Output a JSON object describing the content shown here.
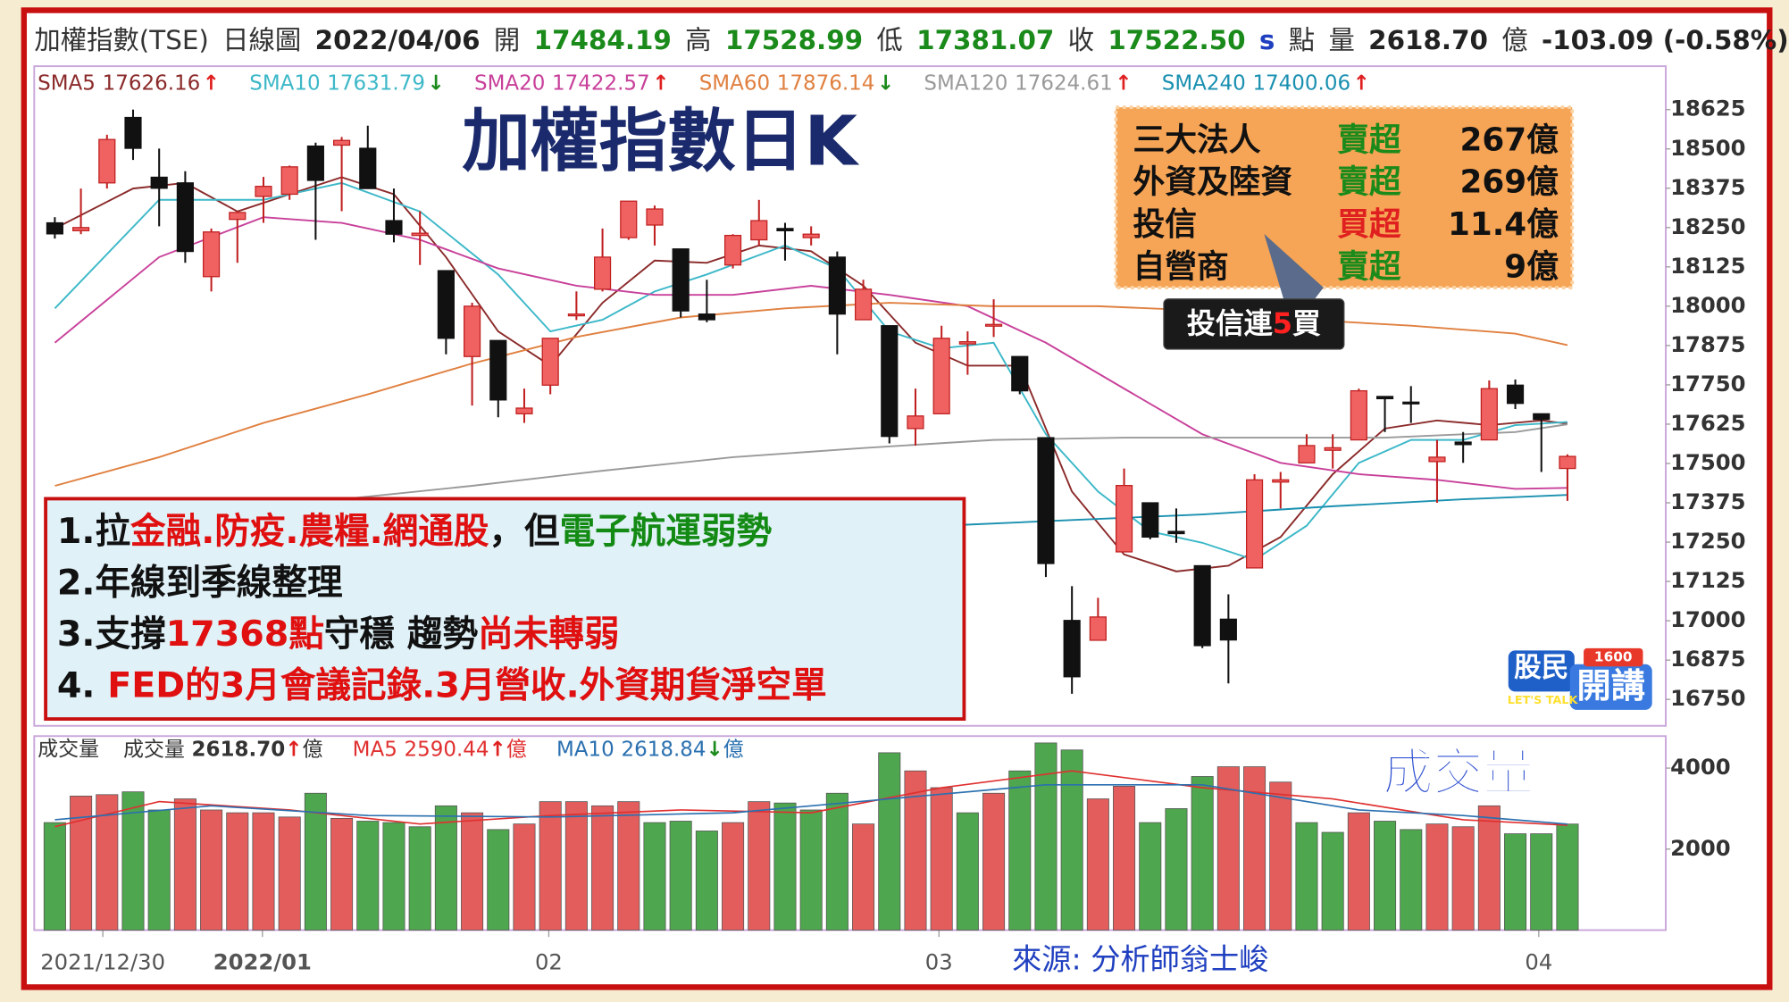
{
  "chart_data": {
    "type": "candlestick",
    "header": [
      {
        "text": "加權指數(TSE)",
        "color": "#333",
        "bold": false
      },
      {
        "text": "日線圖",
        "color": "#333",
        "bold": false
      },
      {
        "text": "2022/04/06",
        "color": "#222",
        "bold": true
      },
      {
        "text": "開",
        "color": "#333",
        "bold": false
      },
      {
        "text": "17484.19",
        "color": "#1a8a1a",
        "bold": true
      },
      {
        "text": "高",
        "color": "#333",
        "bold": false
      },
      {
        "text": "17528.99",
        "color": "#1a8a1a",
        "bold": true
      },
      {
        "text": "低",
        "color": "#333",
        "bold": false
      },
      {
        "text": "17381.07",
        "color": "#1a8a1a",
        "bold": true
      },
      {
        "text": "收",
        "color": "#333",
        "bold": false
      },
      {
        "text": "17522.50",
        "color": "#1a8a1a",
        "bold": true
      },
      {
        "text": "s",
        "color": "#2040c0",
        "bold": true
      },
      {
        "text": "點",
        "color": "#333",
        "bold": false
      },
      {
        "text": "量",
        "color": "#333",
        "bold": false
      },
      {
        "text": "2618.70",
        "color": "#222",
        "bold": true
      },
      {
        "text": "億",
        "color": "#333",
        "bold": false
      },
      {
        "text": "-103.09 (-0.58%)",
        "color": "#222",
        "bold": true
      }
    ],
    "title": "加權指數日K",
    "xlim": [
      -0.79,
      61.77
    ],
    "xticks": [
      {
        "value": 1.84,
        "label": "2021/12/30"
      },
      {
        "value": 7.96,
        "label": "2022/01"
      },
      {
        "value": 18.94,
        "label": "02"
      },
      {
        "value": 33.9,
        "label": "03"
      },
      {
        "value": 56.9,
        "label": "04"
      }
    ],
    "ylim": [
      16666,
      18763
    ],
    "yticks": [
      16750,
      16875,
      17000,
      17125,
      17250,
      17375,
      17500,
      17625,
      17750,
      17875,
      18000,
      18125,
      18250,
      18375,
      18500,
      18625
    ],
    "up_color": "#f06262",
    "down_color": "#111111",
    "candles": {
      "open": [
        18265,
        18240,
        18392,
        18600,
        18410,
        18392,
        18094,
        18276,
        18349,
        18356,
        18509,
        18512,
        18502,
        18272,
        18225,
        18113,
        17840,
        17891,
        17658,
        17749,
        17970,
        18054,
        18218,
        18258,
        18182,
        17975,
        18131,
        18211,
        18247,
        18218,
        18156,
        17957,
        17938,
        17611,
        17658,
        17880,
        17938,
        17840,
        17582,
        17001,
        16938,
        17219,
        17375,
        17284,
        17175,
        17005,
        17168,
        17441,
        17502,
        17542,
        17575,
        17713,
        17695,
        17506,
        17568,
        17575,
        17749,
        17658,
        17484.19
      ],
      "high": [
        18283,
        18374,
        18545,
        18625,
        18501,
        18429,
        18247,
        18302,
        18411,
        18447,
        18520,
        18538,
        18574,
        18374,
        18302,
        18113,
        18011,
        17891,
        17738,
        17898,
        18047,
        18247,
        18334,
        18320,
        18182,
        18084,
        18229,
        18338,
        18265,
        18254,
        18174,
        18084,
        17938,
        17738,
        17938,
        17920,
        18022,
        17840,
        17582,
        17110,
        17073,
        17484,
        17375,
        17357,
        17175,
        17084,
        17466,
        17473,
        17593,
        17593,
        17738,
        17713,
        17746,
        17575,
        17600,
        17764,
        17767,
        17658,
        17528.99
      ],
      "low": [
        18215,
        18229,
        18374,
        18465,
        18254,
        18138,
        18047,
        18138,
        18265,
        18338,
        18211,
        18302,
        18374,
        18203,
        18131,
        17847,
        17684,
        17647,
        17629,
        17720,
        17956,
        18047,
        18211,
        18193,
        17964,
        17949,
        18120,
        18193,
        18145,
        18193,
        17847,
        17956,
        17564,
        17557,
        17658,
        17782,
        17902,
        17720,
        17139,
        16768,
        16938,
        17219,
        17259,
        17248,
        16913,
        16801,
        17168,
        17357,
        17502,
        17484,
        17575,
        17600,
        17629,
        17375,
        17502,
        17575,
        17673,
        17473,
        17381.07
      ],
      "close": [
        18230,
        18250,
        18530,
        18502,
        18375,
        18174,
        18236,
        18298,
        18381,
        18443,
        18400,
        18527,
        18374,
        18229,
        18232,
        17898,
        18000,
        17702,
        17676,
        17898,
        17975,
        18156,
        18334,
        18309,
        17985,
        17957,
        18225,
        18272,
        18240,
        18229,
        17975,
        18054,
        17586,
        17651,
        17898,
        17887,
        17942,
        17731,
        17182,
        16822,
        17012,
        17430,
        17266,
        17277,
        16921,
        16939,
        17448,
        17448,
        17557,
        17550,
        17731,
        17706,
        17691,
        17520,
        17560,
        17738,
        17691,
        17640,
        17522.5
      ]
    },
    "ma": [
      {
        "name": "SMA5",
        "last": "17626.16",
        "arrow": "↑",
        "arrow_color": "#e02020",
        "color": "#8b2a2a",
        "x": [
          0,
          3,
          5,
          7,
          9,
          11,
          13,
          15,
          17,
          19,
          21,
          23,
          25,
          27,
          29,
          31,
          33,
          35,
          37,
          39,
          41,
          43,
          45,
          47,
          49,
          51,
          53,
          55,
          57,
          58
        ],
        "values": [
          18247,
          18374,
          18392,
          18301,
          18356,
          18410,
          18356,
          18156,
          17920,
          17811,
          18011,
          18145,
          18138,
          18193,
          18175,
          18065,
          17884,
          17811,
          17811,
          17411,
          17211,
          17157,
          17175,
          17266,
          17466,
          17611,
          17637,
          17622,
          17637,
          17626.16
        ]
      },
      {
        "name": "SMA10",
        "last": "17631.79",
        "arrow": "↓",
        "arrow_color": "#1a8a1a",
        "color": "#3cb8c8",
        "x": [
          0,
          4,
          8,
          11,
          14,
          17,
          19,
          21,
          23,
          25,
          28,
          30,
          32,
          34,
          36,
          38,
          40,
          42,
          44,
          46,
          48,
          50,
          52,
          54,
          56,
          58
        ],
        "values": [
          17993,
          18338,
          18338,
          18392,
          18301,
          18101,
          17920,
          17957,
          18047,
          18101,
          18193,
          18120,
          17920,
          17866,
          17884,
          17593,
          17411,
          17284,
          17248,
          17193,
          17302,
          17502,
          17575,
          17575,
          17622,
          17631.79
        ]
      },
      {
        "name": "SMA20",
        "last": "17422.57",
        "arrow": "↑",
        "arrow_color": "#e02020",
        "color": "#c8409a",
        "x": [
          0,
          4,
          8,
          11,
          14,
          17,
          20,
          23,
          26,
          29,
          32,
          35,
          38,
          41,
          44,
          47,
          50,
          53,
          56,
          58
        ],
        "values": [
          17884,
          18156,
          18283,
          18265,
          18211,
          18120,
          18065,
          18036,
          18036,
          18065,
          18036,
          18000,
          17884,
          17738,
          17593,
          17502,
          17466,
          17448,
          17419,
          17422.57
        ]
      },
      {
        "name": "SMA60",
        "last": "17876.14",
        "arrow": "↓",
        "arrow_color": "#1a8a1a",
        "color": "#e08040",
        "x": [
          0,
          4,
          8,
          12,
          16,
          20,
          24,
          28,
          32,
          36,
          40,
          44,
          48,
          52,
          56,
          58
        ],
        "values": [
          17429,
          17520,
          17629,
          17720,
          17818,
          17902,
          17964,
          17993,
          18011,
          18000,
          18000,
          17986,
          17957,
          17938,
          17913,
          17876.14
        ]
      },
      {
        "name": "SMA120",
        "last": "17624.61",
        "arrow": "↑",
        "arrow_color": "#e02020",
        "color": "#9a9a9a",
        "x": [
          11,
          16,
          21,
          26,
          31,
          36,
          41,
          46,
          51,
          56,
          58
        ],
        "values": [
          17386,
          17429,
          17477,
          17520,
          17549,
          17575,
          17582,
          17582,
          17582,
          17600,
          17624.61
        ]
      },
      {
        "name": "SMA240",
        "last": "17400.06",
        "arrow": "↑",
        "arrow_color": "#e02020",
        "color": "#1a90b0",
        "x": [
          34,
          39,
          44,
          49,
          54,
          58
        ],
        "values": [
          17302,
          17320,
          17338,
          17364,
          17386,
          17400.06
        ]
      }
    ],
    "volume": {
      "label": "成交量",
      "title": "成交量",
      "ylim": [
        0,
        4790
      ],
      "yticks": [
        2000,
        4000
      ],
      "legend": [
        {
          "name": "成交量",
          "last": "2618.70",
          "arrow": "↑",
          "arrow_color": "#e02020",
          "unit": "億",
          "color": "#333"
        }
      ],
      "values": [
        2655,
        3310,
        3345,
        3414,
        2966,
        3241,
        2966,
        2897,
        2897,
        2793,
        3379,
        2759,
        2690,
        2655,
        2552,
        3069,
        2897,
        2483,
        2621,
        3172,
        3172,
        3069,
        3172,
        2655,
        2690,
        2448,
        2655,
        3172,
        3138,
        2966,
        3379,
        2621,
        4379,
        3931,
        3517,
        2897,
        3379,
        3931,
        4621,
        4448,
        3241,
        3552,
        2655,
        3000,
        3793,
        4034,
        4034,
        3655,
        2655,
        2414,
        2897,
        2690,
        2483,
        2621,
        2552,
        3069,
        2379,
        2379,
        2618.7
      ],
      "colors": [
        "#4ea64e",
        "#e35d5d",
        "#e35d5d",
        "#4ea64e",
        "#4ea64e",
        "#e35d5d",
        "#e35d5d",
        "#e35d5d",
        "#e35d5d",
        "#e35d5d",
        "#4ea64e",
        "#e35d5d",
        "#4ea64e",
        "#4ea64e",
        "#4ea64e",
        "#4ea64e",
        "#e35d5d",
        "#4ea64e",
        "#e35d5d",
        "#e35d5d",
        "#e35d5d",
        "#e35d5d",
        "#e35d5d",
        "#4ea64e",
        "#4ea64e",
        "#4ea64e",
        "#e35d5d",
        "#e35d5d",
        "#4ea64e",
        "#4ea64e",
        "#4ea64e",
        "#e35d5d",
        "#4ea64e",
        "#e35d5d",
        "#e35d5d",
        "#4ea64e",
        "#e35d5d",
        "#4ea64e",
        "#4ea64e",
        "#4ea64e",
        "#e35d5d",
        "#e35d5d",
        "#4ea64e",
        "#4ea64e",
        "#4ea64e",
        "#e35d5d",
        "#e35d5d",
        "#e35d5d",
        "#4ea64e",
        "#4ea64e",
        "#e35d5d",
        "#4ea64e",
        "#4ea64e",
        "#e35d5d",
        "#e35d5d",
        "#e35d5d",
        "#4ea64e",
        "#4ea64e",
        "#4ea64e"
      ],
      "ma": [
        {
          "name": "MA5",
          "last": "2590.44",
          "arrow": "↑",
          "arrow_color": "#e02020",
          "unit": "億",
          "color": "#e03030",
          "x": [
            0,
            4,
            9,
            14,
            19,
            24,
            29,
            34,
            39,
            44,
            49,
            54,
            58
          ],
          "values": [
            2552,
            3172,
            2966,
            2621,
            2828,
            2966,
            2897,
            3517,
            3931,
            3517,
            3241,
            2724,
            2590.44
          ]
        },
        {
          "name": "MA10",
          "last": "2618.84",
          "arrow": "↓",
          "arrow_color": "#1a8a1a",
          "unit": "億",
          "color": "#2a70b0",
          "x": [
            0,
            6,
            12,
            19,
            26,
            32,
            38,
            44,
            50,
            54,
            58
          ],
          "values": [
            2724,
            3069,
            2828,
            2793,
            2897,
            3241,
            3586,
            3586,
            2966,
            2828,
            2618.84
          ]
        }
      ]
    },
    "institutional": {
      "rows": [
        [
          "三大法人",
          "賣超",
          "267億"
        ],
        [
          "外資及陸資",
          "賣超",
          "269億"
        ],
        [
          "投信",
          "買超",
          "11.4億"
        ],
        [
          "自營商",
          "賣超",
          "9億"
        ]
      ],
      "action_colors": [
        "#1a8a1a",
        "#1a8a1a",
        "#e02020",
        "#1a8a1a"
      ]
    },
    "callout": [
      {
        "text": "投信連",
        "color": "#ffffff"
      },
      {
        "text": "5",
        "color": "#ff2020"
      },
      {
        "text": "買",
        "color": "#ffffff"
      }
    ],
    "notes": [
      [
        {
          "text": "1.拉",
          "color": "#111"
        },
        {
          "text": "金融.防疫.農糧.網通股",
          "color": "#e01010"
        },
        {
          "text": "，但",
          "color": "#111"
        },
        {
          "text": "電子航運弱勢",
          "color": "#138a13"
        }
      ],
      [
        {
          "text": "2.年線到季線整理",
          "color": "#111"
        }
      ],
      [
        {
          "text": "3.支撐",
          "color": "#111"
        },
        {
          "text": "17368點",
          "color": "#e01010"
        },
        {
          "text": "守穩 趨勢",
          "color": "#111"
        },
        {
          "text": "尚未轉弱",
          "color": "#e01010"
        }
      ],
      [
        {
          "text": "4. ",
          "color": "#111"
        },
        {
          "text": "FED的3月會議記錄.3月營收.外資期貨淨空單",
          "color": "#e01010"
        }
      ]
    ],
    "source": "來源: 分析師翁士峻",
    "logo": {
      "top": "股民",
      "number": "1600",
      "main": "開講",
      "sub": "LET'S TALK"
    }
  }
}
